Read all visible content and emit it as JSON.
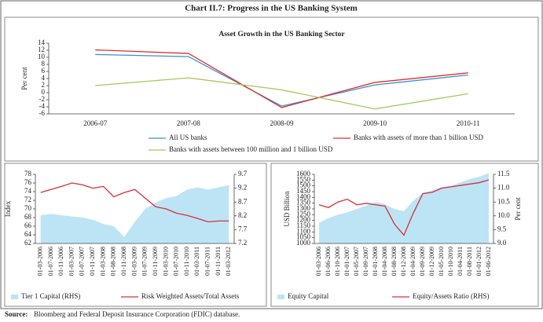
{
  "title": "Chart II.7: Progress in the US Banking System",
  "source_label": "Source:",
  "source": "Bloomberg and Federal Deposit Insurance Corporation (FDIC) database.",
  "chart_data": [
    {
      "type": "line",
      "title": "Asset Growth in the US Banking Sector",
      "ylabel": "Per cent",
      "categories": [
        "2006-07",
        "2007-08",
        "2008-09",
        "2009-10",
        "2010-11"
      ],
      "ylim": [
        -6,
        14
      ],
      "yticks": [
        -6,
        -4,
        -2,
        0,
        2,
        4,
        6,
        8,
        10,
        12,
        14
      ],
      "legend": "bottom",
      "series": [
        {
          "name": "All US banks",
          "color": "#3a8fd8",
          "values": [
            10.8,
            10.2,
            -3.8,
            2.2,
            5.0
          ]
        },
        {
          "name": "Banks with assets of more than 1 billion USD",
          "color": "#e0302a",
          "values": [
            12.1,
            11.1,
            -4.2,
            2.9,
            5.6
          ]
        },
        {
          "name": "Banks with assets between 100 million and 1 billion USD",
          "color": "#a6c85a",
          "values": [
            2.0,
            4.2,
            0.8,
            -4.6,
            -0.3
          ]
        }
      ]
    },
    {
      "type": "line",
      "ylabel": "Index",
      "categories": [
        "01-03-2006",
        "01-07-2006",
        "01-11-2006",
        "01-03-2007",
        "01-07-2007",
        "01-11-2007",
        "01-03-2008",
        "01-08-2008",
        "01-11-2008",
        "01-03-2009",
        "01-07-2009",
        "01-11-2009",
        "01-03-2010",
        "01-07-2010",
        "01-11-2010",
        "01-03-2011",
        "01-07-2011",
        "01-11-2011",
        "01-03-2012"
      ],
      "ylim": [
        62,
        78
      ],
      "yticks": [
        62,
        64,
        66,
        68,
        70,
        72,
        74,
        76,
        78
      ],
      "y2lim": [
        7.2,
        9.7
      ],
      "y2ticks": [
        7.2,
        7.7,
        8.2,
        8.7,
        9.2,
        9.7
      ],
      "legend": "bottom",
      "series": [
        {
          "name": "Tier 1 Capital (RHS)",
          "style": "area",
          "axis": "y2",
          "color": "#bde4f4",
          "values": [
            8.22,
            8.27,
            8.22,
            8.18,
            8.14,
            8.06,
            7.9,
            7.83,
            7.43,
            7.98,
            8.45,
            8.68,
            8.84,
            8.92,
            9.15,
            9.23,
            9.15,
            9.23,
            9.31
          ]
        },
        {
          "name": "Risk Weighted Assets/Total Assets",
          "style": "line",
          "color": "#d6303a",
          "values": [
            73.8,
            74.5,
            75.2,
            76,
            75.6,
            74.8,
            75.2,
            72.8,
            73.8,
            74.5,
            72.5,
            70.5,
            70,
            69,
            68.5,
            67.8,
            67,
            67.2,
            67.2
          ]
        }
      ]
    },
    {
      "type": "line",
      "ylabel": "USD Billion",
      "y2label": "Per cent",
      "categories": [
        "01-03-2006",
        "01-06-2006",
        "01-10-2006",
        "01-01-2007",
        "01-05-2007",
        "01-09-2007",
        "01-01-2008",
        "01-04-2008",
        "01-08-2008",
        "01-12-2008",
        "01-04-2009",
        "01-09-2009",
        "01-12-2009",
        "01-05-2010",
        "01-10-2010",
        "01-04-2011",
        "01-08-2011",
        "01-01-2012",
        "01-06-2012"
      ],
      "ylim": [
        1000,
        1600
      ],
      "yticks": [
        1000,
        1050,
        1100,
        1150,
        1200,
        1250,
        1300,
        1350,
        1400,
        1450,
        1500,
        1550,
        1600
      ],
      "y2lim": [
        9,
        11.5
      ],
      "y2ticks": [
        {
          "value": 9,
          "label": "9.0"
        },
        9.5,
        {
          "value": 10,
          "label": "10.0"
        },
        10.5,
        {
          "value": 11,
          "label": "11.0"
        },
        11.5
      ],
      "legend": "bottom",
      "series": [
        {
          "name": "Equity Capital",
          "style": "area",
          "color": "#bde4f4",
          "values": [
            1180,
            1220,
            1250,
            1270,
            1300,
            1330,
            1360,
            1340,
            1300,
            1280,
            1370,
            1440,
            1460,
            1490,
            1500,
            1530,
            1560,
            1580,
            1610
          ]
        },
        {
          "name": "Equity/Assets Ratio (RHS)",
          "style": "line",
          "axis": "y2",
          "color": "#d6303a",
          "values": [
            10.4,
            10.3,
            10.5,
            10.6,
            10.4,
            10.45,
            10.4,
            10.35,
            9.7,
            9.3,
            10.1,
            10.8,
            10.85,
            11.0,
            11.05,
            11.1,
            11.15,
            11.2,
            11.3
          ]
        }
      ]
    }
  ]
}
